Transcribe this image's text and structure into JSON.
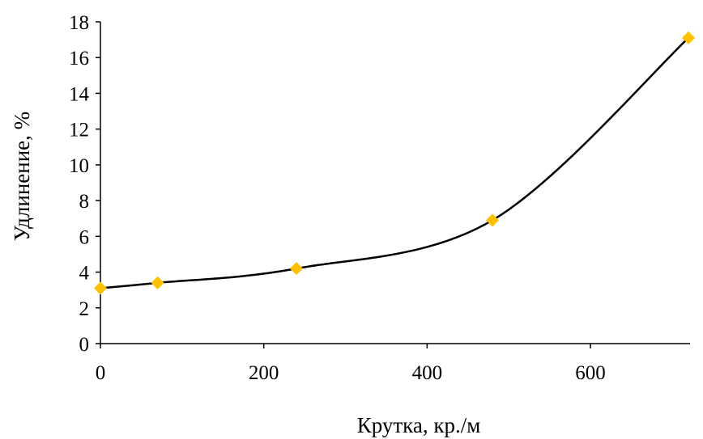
{
  "chart_data": {
    "type": "line",
    "title": "",
    "xlabel": "Крутка, кр./м",
    "ylabel": "Удлинение, %",
    "xlim": [
      0,
      720
    ],
    "ylim": [
      0,
      18
    ],
    "x_ticks": [
      0,
      200,
      400,
      600
    ],
    "y_ticks": [
      0,
      2,
      4,
      6,
      8,
      10,
      12,
      14,
      16,
      18
    ],
    "grid": false,
    "legend": "none",
    "smooth": true,
    "series": [
      {
        "color": "#000000",
        "marker": "diamond",
        "marker_color": "#FFC000",
        "points": [
          {
            "x": 0,
            "y": 3.1
          },
          {
            "x": 70,
            "y": 3.4
          },
          {
            "x": 240,
            "y": 4.2
          },
          {
            "x": 480,
            "y": 6.9
          },
          {
            "x": 720,
            "y": 17.1
          }
        ]
      }
    ]
  }
}
